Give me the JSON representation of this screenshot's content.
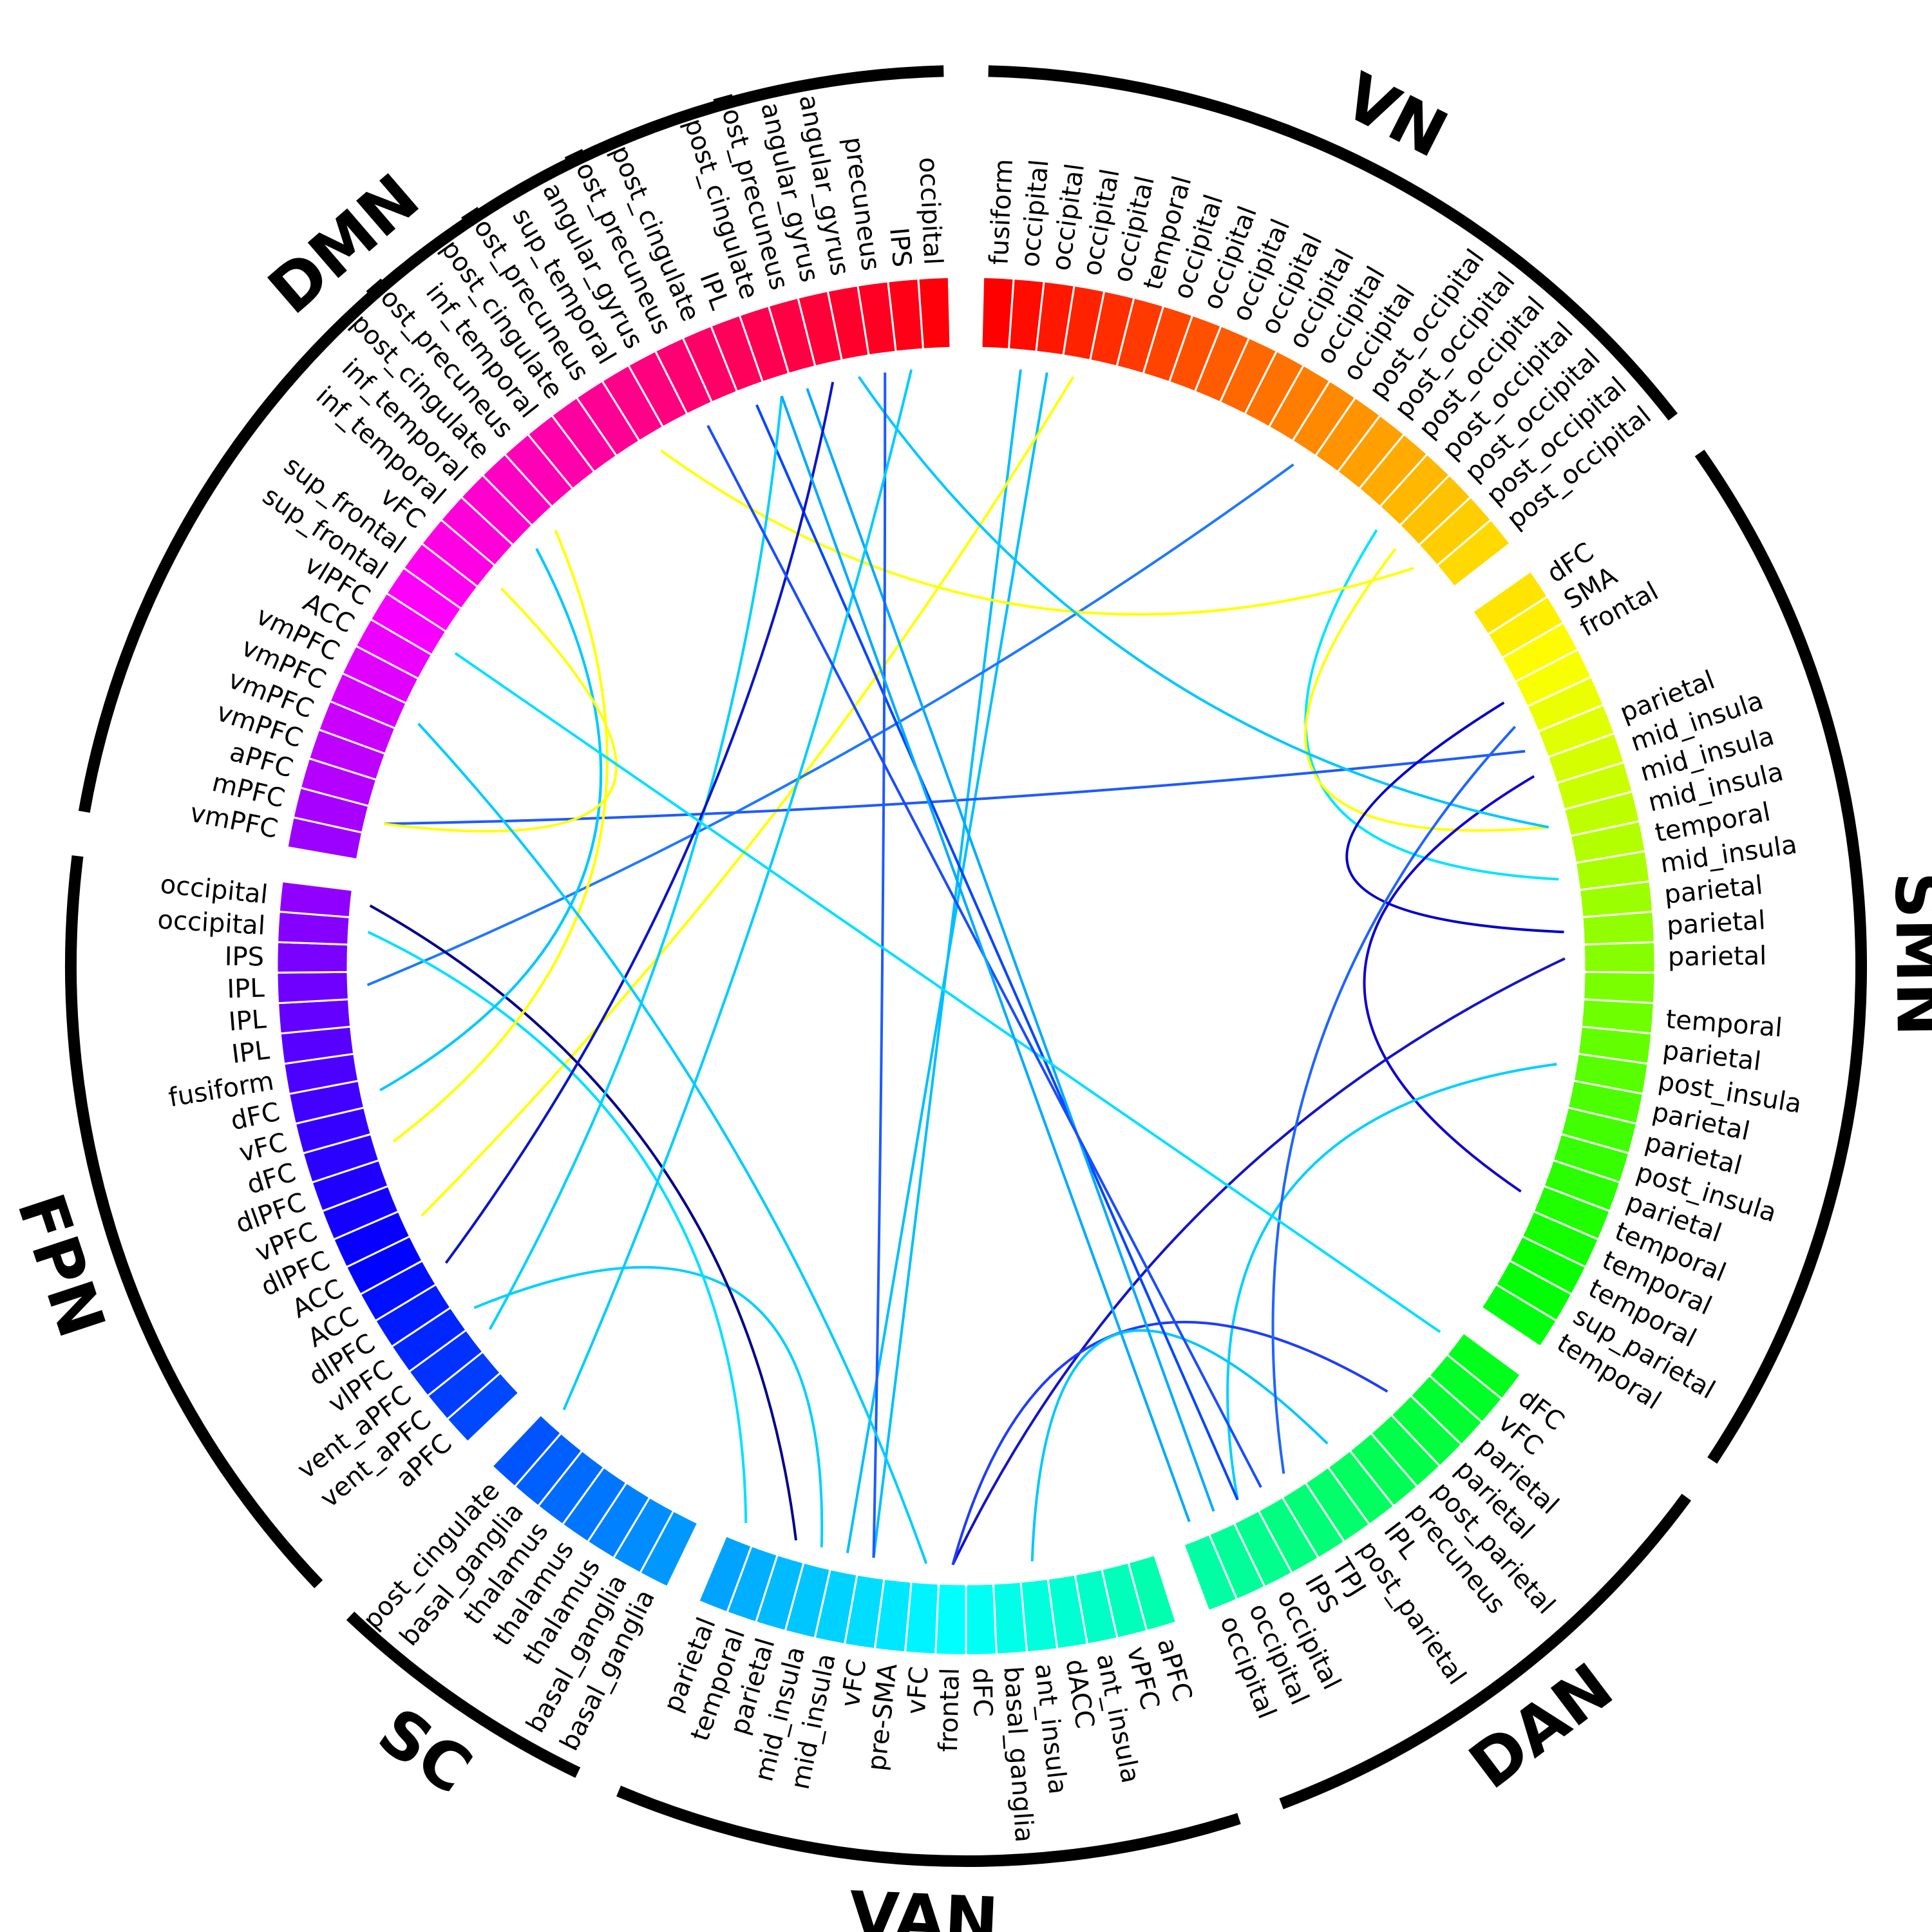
{
  "networks": [
    {
      "name": "VN",
      "nodes": [
        "fusiform",
        "occipital",
        "occipital",
        "occipital",
        "occipital",
        "temporal",
        "occipital",
        "occipital",
        "occipital",
        "occipital",
        "occipital",
        "occipital",
        "occipital",
        "post_occipital",
        "post_occipital",
        "post_occipital",
        "post_occipital",
        "post_occipital",
        "post_occipital",
        "post_occipital"
      ]
    },
    {
      "name": "SMN",
      "nodes": [
        "dFC",
        "SMA",
        "frontal",
        "",
        "",
        "parietal",
        "mid_insula",
        "mid_insula",
        "mid_insula",
        "temporal",
        "mid_insula",
        "parietal",
        "parietal",
        "parietal",
        "",
        "temporal",
        "parietal",
        "post_insula",
        "parietal",
        "parietal",
        "post_insula",
        "parietal",
        "temporal",
        "temporal",
        "temporal",
        "sup_parietal",
        "temporal"
      ]
    },
    {
      "name": "DAN",
      "nodes": [
        "dFC",
        "vFC",
        "parietal",
        "parietal",
        "post_parietal",
        "precuneus",
        "IPL",
        "post_parietal",
        "TPJ",
        "IPS",
        "occipital",
        "occipital",
        "occipital"
      ]
    },
    {
      "name": "VAN",
      "nodes": [
        "aPFC",
        "vPFC",
        "ant_insula",
        "dACC",
        "ant_insula",
        "basal_ganglia",
        "dFC",
        "frontal",
        "vFC",
        "pre-SMA",
        "vFC",
        "mid_insula",
        "mid_insula",
        "parietal",
        "temporal",
        "parietal"
      ]
    },
    {
      "name": "SC",
      "nodes": [
        "basal_ganglia",
        "basal_ganglia",
        "thalamus",
        "thalamus",
        "thalamus",
        "basal_ganglia",
        "post_cingulate"
      ]
    },
    {
      "name": "FPN",
      "nodes": [
        "aPFC",
        "vent_aPFC",
        "vent_aPFC",
        "vlPFC",
        "dlPFC",
        "ACC",
        "ACC",
        "dlPFC",
        "vPFC",
        "dlPFC",
        "dFC",
        "vFC",
        "dFC",
        "fusiform",
        "IPL",
        "IPL",
        "IPL",
        "IPS",
        "occipital",
        "occipital"
      ]
    },
    {
      "name": "DMN",
      "nodes": [
        "vmPFC",
        "mPFC",
        "aPFC",
        "vmPFC",
        "vmPFC",
        "vmPFC",
        "vmPFC",
        "ACC",
        "vlPFC",
        "sup_frontal",
        "sup_frontal",
        "vFC",
        "inf_temporal",
        "inf_temporal",
        "post_cingulate",
        "post_precuneus",
        "inf_temporal",
        "post_cingulate",
        "post_precuneus",
        "sup_temporal",
        "angular_gyrus",
        "post_precuneus",
        "post_cingulate",
        "IPL",
        "post_cingulate",
        "post_precuneus",
        "angular_gyrus",
        "angular_gyrus",
        "precuneus",
        "IPS",
        "occipital"
      ]
    }
  ],
  "links": [
    {
      "a": "VN.1",
      "b": "VAN.10",
      "color": "#00bfff"
    },
    {
      "a": "VN.2",
      "b": "VAN.11",
      "color": "#00bfff"
    },
    {
      "a": "VN.3",
      "b": "FPN.7",
      "color": "#ffff00"
    },
    {
      "a": "VN.12",
      "b": "FPN.16",
      "color": "#1e78ff"
    },
    {
      "a": "VN.16",
      "b": "SMN.10",
      "color": "#00e5ff"
    },
    {
      "a": "VN.17",
      "b": "SMN.8",
      "color": "#ffff00"
    },
    {
      "a": "VN.18",
      "b": "DMN.19",
      "color": "#ffff00"
    },
    {
      "a": "SMN.5",
      "b": "DMN.1",
      "color": "#1e5aff"
    },
    {
      "a": "SMN.6",
      "b": "SMN.22",
      "color": "#1000d0"
    },
    {
      "a": "SMN.8",
      "b": "DMN.27",
      "color": "#00c8ff"
    },
    {
      "a": "SMN.12",
      "b": "SMN.3",
      "color": "#0000cc"
    },
    {
      "a": "SMN.13",
      "b": "VAN.7",
      "color": "#1414c8"
    },
    {
      "a": "SMN.17",
      "b": "DAN.10",
      "color": "#00d0ff"
    },
    {
      "a": "DAN.3",
      "b": "VAN.7",
      "color": "#1e3cff"
    },
    {
      "a": "DAN.6",
      "b": "VAN.4",
      "color": "#00c8ff"
    },
    {
      "a": "DAN.8",
      "b": "SMN.4",
      "color": "#1e64ff"
    },
    {
      "a": "DAN.10",
      "b": "DMN.23",
      "color": "#0046ff"
    },
    {
      "a": "DAN.11",
      "b": "DMN.25",
      "color": "#00aaff"
    },
    {
      "a": "VAN.10",
      "b": "DMN.28",
      "color": "#1e5aff"
    },
    {
      "a": "VAN.12",
      "b": "FPN.3",
      "color": "#00d0ff"
    },
    {
      "a": "VAN.13",
      "b": "FPN.19",
      "color": "#00008b"
    },
    {
      "a": "VAN.15",
      "b": "FPN.18",
      "color": "#00e0ff"
    },
    {
      "a": "SC.6",
      "b": "DMN.29",
      "color": "#00ccff"
    },
    {
      "a": "FPN.2",
      "b": "DMN.24",
      "color": "#00d0ff"
    },
    {
      "a": "FPN.10",
      "b": "DMN.14",
      "color": "#ffff00"
    },
    {
      "a": "FPN.12",
      "b": "DMN.13",
      "color": "#00c8ff"
    },
    {
      "a": "FPN.5",
      "b": "DMN.26",
      "color": "#0a14c8"
    },
    {
      "a": "DMN.11",
      "b": "DMN.1",
      "color": "#ffff00"
    },
    {
      "a": "DMN.8",
      "b": "DAN.0",
      "color": "#00e0ff"
    },
    {
      "a": "DMN.5",
      "b": "VAN.8",
      "color": "#00ccff"
    },
    {
      "a": "DMN.21",
      "b": "DAN.9",
      "color": "#1a4cff"
    },
    {
      "a": "DMN.24",
      "b": "DAN.12",
      "color": "#00aaff"
    }
  ]
}
